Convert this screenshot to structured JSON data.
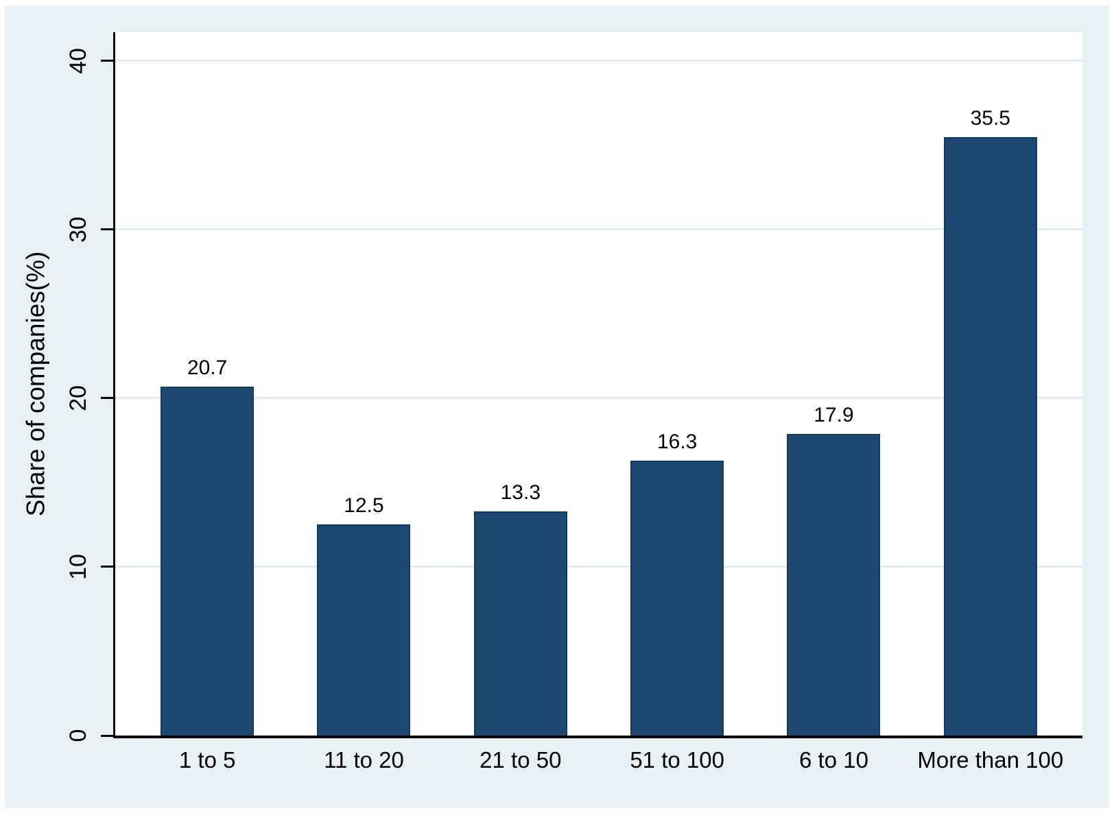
{
  "chart_data": {
    "type": "bar",
    "title": "",
    "categories": [
      "1 to 5",
      "11 to 20",
      "21 to 50",
      "51 to 100",
      "6 to 10",
      "More than 100"
    ],
    "values": [
      20.7,
      12.5,
      13.3,
      16.3,
      17.9,
      35.5
    ],
    "value_labels": [
      "20.7",
      "12.5",
      "13.3",
      "16.3",
      "17.9",
      "35.5"
    ],
    "xlabel": "",
    "ylabel": "Share of companies(%)",
    "yticks": [
      0,
      10,
      20,
      30,
      40
    ],
    "ytick_labels": [
      "0",
      "10",
      "20",
      "30",
      "40"
    ],
    "ylim": [
      0,
      41.7
    ],
    "grid": true,
    "legend": "none",
    "colors": {
      "bar_fill": "#1b4971",
      "bar_border": "#15395f",
      "chart_background": "#e9f0f3",
      "plot_background": "#ffffff",
      "gridline": "#e2ecf1",
      "axis": "#000000",
      "text": "#000000"
    }
  }
}
